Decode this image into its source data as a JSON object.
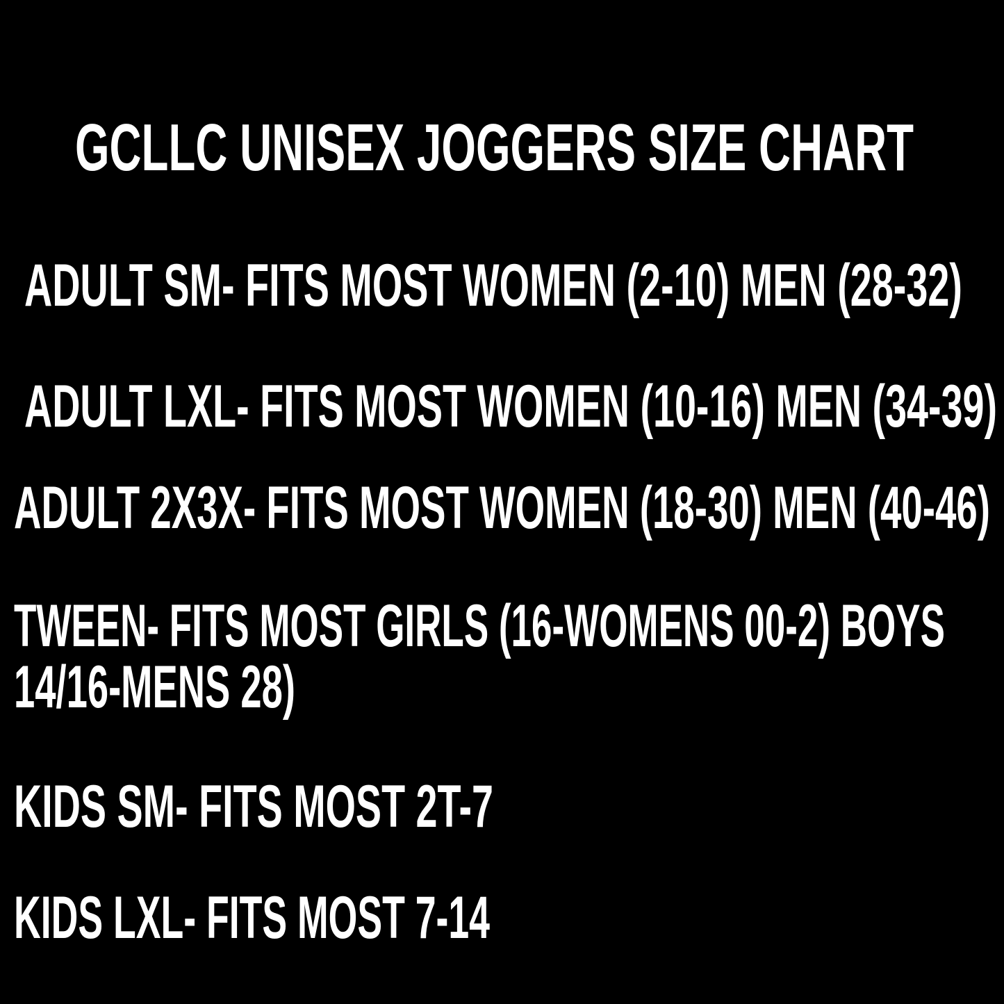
{
  "colors": {
    "background": "#000000",
    "text": "#ffffff"
  },
  "title": "GCLLC UNISEX JOGGERS SIZE CHART",
  "lines": [
    "ADULT SM- FITS MOST WOMEN (2-10) MEN (28-32)",
    "ADULT LXL- FITS MOST WOMEN (10-16) MEN (34-39)",
    "ADULT 2X3X- FITS MOST WOMEN (18-30) MEN (40-46)",
    "TWEEN- FITS MOST GIRLS (16-WOMENS 00-2) BOYS",
    "14/16-MENS 28)",
    "KIDS SM- FITS MOST 2T-7",
    "KIDS LXL- FITS MOST 7-14"
  ]
}
